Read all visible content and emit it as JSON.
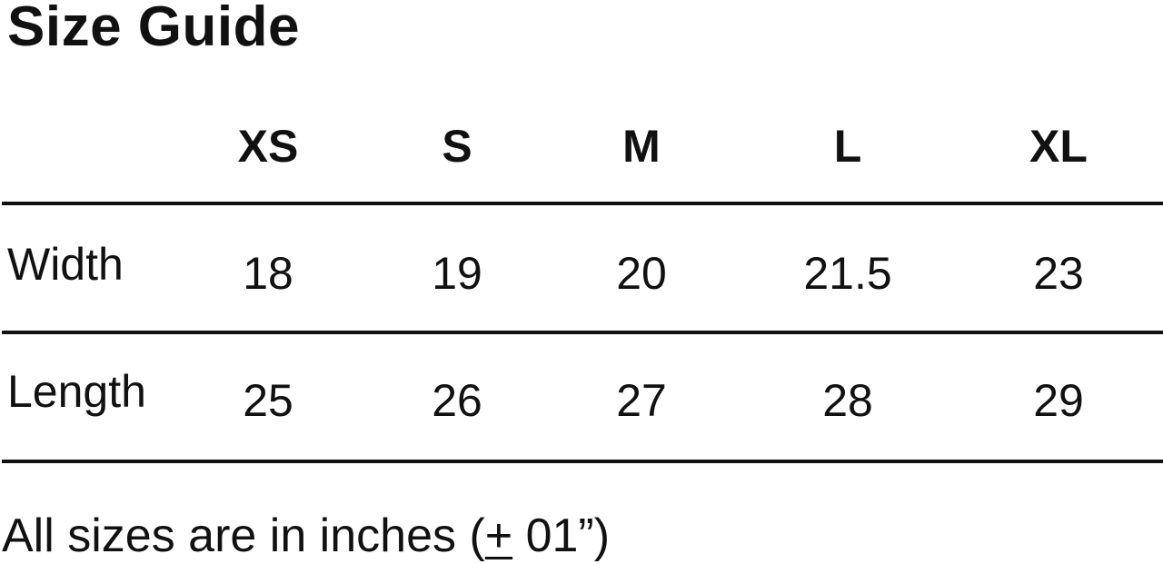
{
  "title": "Size Guide",
  "sizes": [
    "XS",
    "S",
    "M",
    "L",
    "XL"
  ],
  "rows": [
    {
      "label": "Width",
      "values": [
        "18",
        "19",
        "20",
        "21.5",
        "23"
      ]
    },
    {
      "label": "Length",
      "values": [
        "25",
        "26",
        "27",
        "28",
        "29"
      ]
    }
  ],
  "note": {
    "prefix": "All sizes are in inches (",
    "plus_minus": "+",
    "suffix": " 01”)"
  }
}
